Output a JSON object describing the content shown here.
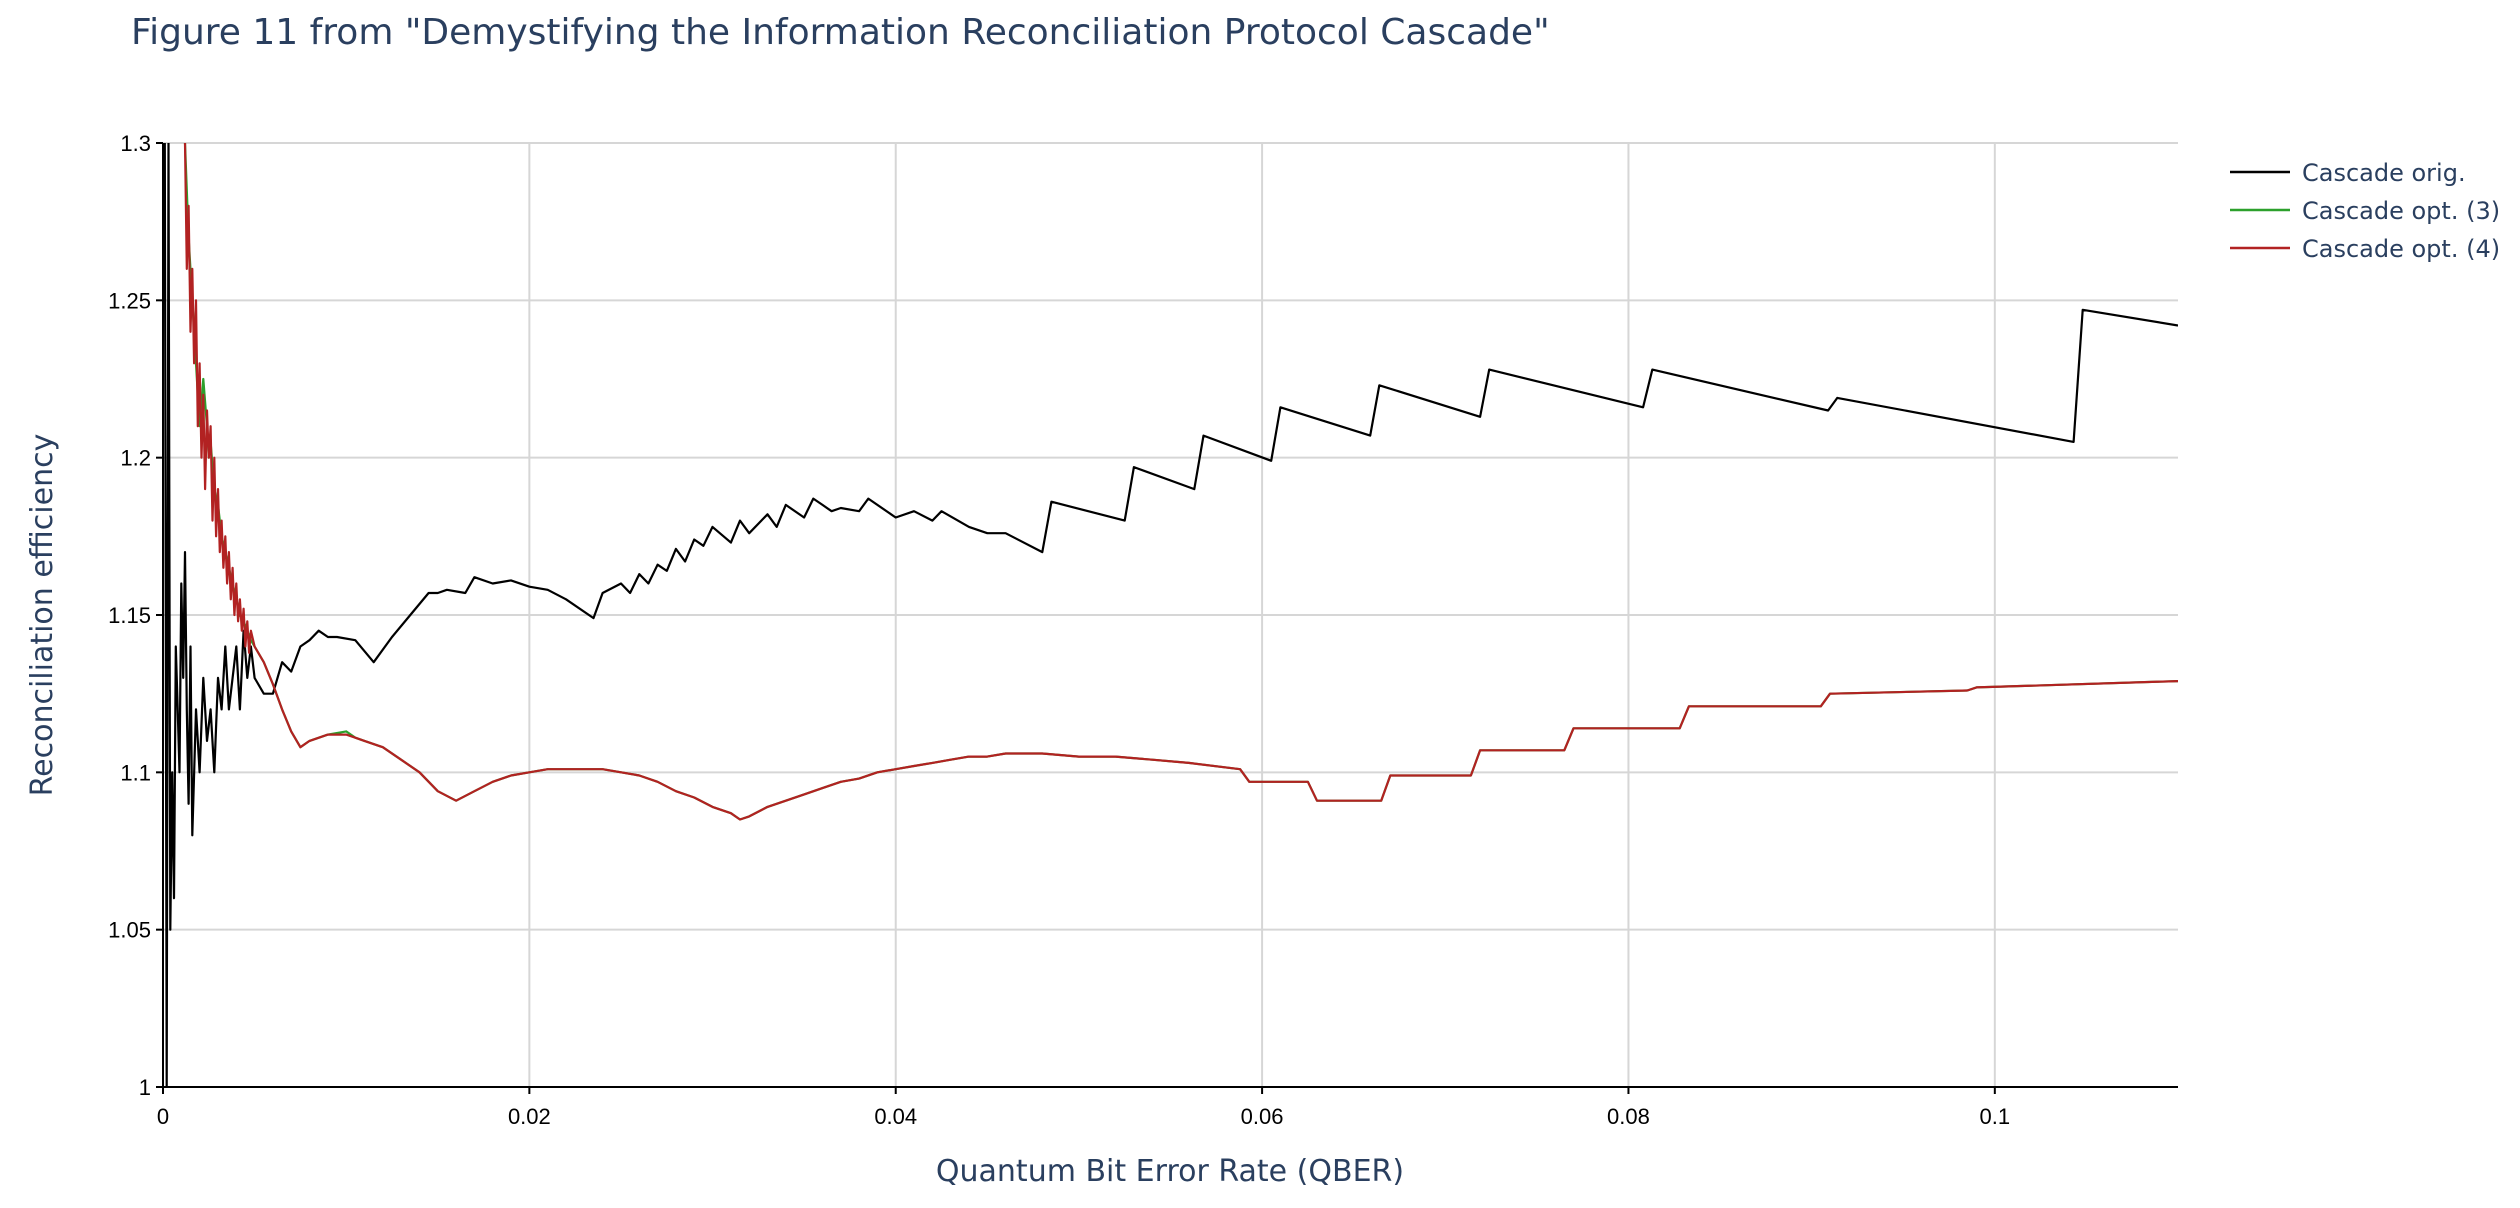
{
  "chart_data": {
    "type": "line",
    "title": "Figure 11 from \"Demystifying the Information Reconciliation Protocol Cascade\"",
    "xlabel": "Quantum Bit Error Rate (QBER)",
    "ylabel": "Reconciliation efficiency",
    "xlim": [
      0,
      0.11
    ],
    "ylim": [
      1,
      1.3
    ],
    "xticks": [
      0,
      0.02,
      0.04,
      0.06,
      0.08,
      0.1
    ],
    "xtick_labels": [
      "0",
      "0.02",
      "0.04",
      "0.06",
      "0.08",
      "0.1"
    ],
    "yticks": [
      1,
      1.05,
      1.1,
      1.15,
      1.2,
      1.25,
      1.3
    ],
    "ytick_labels": [
      "1",
      "1.05",
      "1.1",
      "1.15",
      "1.2",
      "1.25",
      "1.3"
    ],
    "grid": true,
    "legend_position": "top-right",
    "series": [
      {
        "name": "Cascade orig.",
        "color": "#000000",
        "x": [
          0.0001,
          0.0002,
          0.0003,
          0.0004,
          0.0005,
          0.0006,
          0.0007,
          0.0008,
          0.0009,
          0.001,
          0.0011,
          0.0012,
          0.0013,
          0.0014,
          0.0015,
          0.0016,
          0.0018,
          0.002,
          0.0022,
          0.0024,
          0.0026,
          0.0028,
          0.003,
          0.0032,
          0.0034,
          0.0036,
          0.0038,
          0.004,
          0.0042,
          0.0044,
          0.0046,
          0.0048,
          0.005,
          0.0055,
          0.006,
          0.0065,
          0.007,
          0.0075,
          0.008,
          0.0085,
          0.009,
          0.0095,
          0.0105,
          0.0115,
          0.0125,
          0.0135,
          0.0145,
          0.015,
          0.0155,
          0.0165,
          0.017,
          0.018,
          0.019,
          0.02,
          0.021,
          0.022,
          0.0235,
          0.024,
          0.025,
          0.0255,
          0.026,
          0.0265,
          0.027,
          0.0275,
          0.028,
          0.0285,
          0.029,
          0.0295,
          0.03,
          0.031,
          0.0315,
          0.032,
          0.033,
          0.0335,
          0.034,
          0.035,
          0.0355,
          0.036,
          0.0365,
          0.037,
          0.038,
          0.0385,
          0.04,
          0.041,
          0.042,
          0.0425,
          0.044,
          0.045,
          0.046,
          0.048,
          0.0485,
          0.0525,
          0.053,
          0.0563,
          0.0568,
          0.0605,
          0.061,
          0.0659,
          0.0664,
          0.0719,
          0.0724,
          0.0808,
          0.0813,
          0.0909,
          0.0914,
          0.1043,
          0.1048,
          0.11
        ],
        "y": [
          1.3,
          1.0,
          1.3,
          1.05,
          1.1,
          1.06,
          1.14,
          1.12,
          1.1,
          1.16,
          1.13,
          1.17,
          1.12,
          1.09,
          1.14,
          1.08,
          1.12,
          1.1,
          1.13,
          1.11,
          1.12,
          1.1,
          1.13,
          1.12,
          1.14,
          1.12,
          1.13,
          1.14,
          1.12,
          1.145,
          1.13,
          1.14,
          1.13,
          1.125,
          1.125,
          1.135,
          1.132,
          1.14,
          1.142,
          1.145,
          1.143,
          1.143,
          1.142,
          1.135,
          1.143,
          1.15,
          1.157,
          1.157,
          1.158,
          1.157,
          1.162,
          1.16,
          1.161,
          1.159,
          1.158,
          1.155,
          1.149,
          1.157,
          1.16,
          1.157,
          1.163,
          1.16,
          1.166,
          1.164,
          1.171,
          1.167,
          1.174,
          1.172,
          1.178,
          1.173,
          1.18,
          1.176,
          1.182,
          1.178,
          1.185,
          1.181,
          1.187,
          1.185,
          1.183,
          1.184,
          1.183,
          1.187,
          1.181,
          1.183,
          1.18,
          1.183,
          1.178,
          1.176,
          1.176,
          1.17,
          1.186,
          1.18,
          1.197,
          1.19,
          1.207,
          1.199,
          1.216,
          1.207,
          1.223,
          1.213,
          1.228,
          1.216,
          1.228,
          1.215,
          1.219,
          1.205,
          1.247,
          1.242
        ]
      },
      {
        "name": "Cascade opt. (3)",
        "color": "#2ca02c",
        "x": [
          0.0012,
          0.0014,
          0.0016,
          0.0018,
          0.002,
          0.0022,
          0.0024,
          0.0025,
          0.0026,
          0.0028,
          0.003,
          0.0032,
          0.0034,
          0.0036,
          0.0038,
          0.004,
          0.0042,
          0.0044,
          0.0046,
          0.0048,
          0.005,
          0.0055,
          0.006,
          0.0065,
          0.007,
          0.0075,
          0.008,
          0.009,
          0.01,
          0.0105,
          0.011,
          0.012,
          0.013,
          0.014,
          0.015,
          0.016,
          0.017,
          0.018,
          0.019,
          0.02,
          0.021,
          0.022,
          0.023,
          0.024,
          0.025,
          0.026,
          0.027,
          0.028,
          0.029,
          0.03,
          0.031,
          0.0315,
          0.032,
          0.033,
          0.034,
          0.035,
          0.036,
          0.037,
          0.038,
          0.039,
          0.04,
          0.041,
          0.042,
          0.043,
          0.044,
          0.045,
          0.046,
          0.047,
          0.048,
          0.05,
          0.052,
          0.054,
          0.056,
          0.0588,
          0.0593,
          0.0625,
          0.063,
          0.0665,
          0.067,
          0.0714,
          0.0719,
          0.0765,
          0.077,
          0.0828,
          0.0833,
          0.0905,
          0.091,
          0.0985,
          0.099,
          0.11
        ],
        "y": [
          1.3,
          1.27,
          1.25,
          1.23,
          1.21,
          1.225,
          1.21,
          1.2,
          1.205,
          1.19,
          1.185,
          1.175,
          1.17,
          1.165,
          1.16,
          1.155,
          1.15,
          1.148,
          1.145,
          1.142,
          1.14,
          1.135,
          1.128,
          1.12,
          1.113,
          1.108,
          1.11,
          1.112,
          1.113,
          1.111,
          1.11,
          1.108,
          1.104,
          1.1,
          1.094,
          1.091,
          1.094,
          1.097,
          1.099,
          1.1,
          1.101,
          1.101,
          1.101,
          1.101,
          1.1,
          1.099,
          1.097,
          1.094,
          1.092,
          1.089,
          1.087,
          1.085,
          1.086,
          1.089,
          1.091,
          1.093,
          1.095,
          1.097,
          1.098,
          1.1,
          1.101,
          1.102,
          1.103,
          1.104,
          1.105,
          1.105,
          1.106,
          1.106,
          1.106,
          1.105,
          1.105,
          1.104,
          1.103,
          1.101,
          1.097,
          1.097,
          1.091,
          1.091,
          1.099,
          1.099,
          1.107,
          1.107,
          1.114,
          1.114,
          1.121,
          1.121,
          1.125,
          1.126,
          1.127,
          1.129
        ]
      },
      {
        "name": "Cascade opt. (4)",
        "color": "#b22222",
        "x": [
          0.0012,
          0.0013,
          0.0014,
          0.0015,
          0.0016,
          0.0017,
          0.0018,
          0.0019,
          0.002,
          0.0021,
          0.0022,
          0.0023,
          0.0024,
          0.0025,
          0.0026,
          0.0027,
          0.0028,
          0.0029,
          0.003,
          0.0031,
          0.0032,
          0.0033,
          0.0034,
          0.0035,
          0.0036,
          0.0037,
          0.0038,
          0.0039,
          0.004,
          0.0041,
          0.0042,
          0.0043,
          0.0044,
          0.0045,
          0.0046,
          0.0047,
          0.0048,
          0.005,
          0.0055,
          0.006,
          0.0065,
          0.007,
          0.0075,
          0.008,
          0.009,
          0.01,
          0.0105,
          0.011,
          0.012,
          0.013,
          0.014,
          0.015,
          0.016,
          0.017,
          0.018,
          0.019,
          0.02,
          0.021,
          0.022,
          0.023,
          0.024,
          0.025,
          0.026,
          0.027,
          0.028,
          0.029,
          0.03,
          0.031,
          0.0315,
          0.032,
          0.033,
          0.034,
          0.035,
          0.036,
          0.037,
          0.038,
          0.039,
          0.04,
          0.041,
          0.042,
          0.043,
          0.044,
          0.045,
          0.046,
          0.047,
          0.048,
          0.05,
          0.052,
          0.054,
          0.056,
          0.0588,
          0.0593,
          0.0625,
          0.063,
          0.0665,
          0.067,
          0.0714,
          0.0719,
          0.0765,
          0.077,
          0.0828,
          0.0833,
          0.0905,
          0.091,
          0.0985,
          0.099,
          0.11
        ],
        "y": [
          1.3,
          1.26,
          1.28,
          1.24,
          1.26,
          1.23,
          1.25,
          1.21,
          1.23,
          1.2,
          1.22,
          1.19,
          1.215,
          1.2,
          1.21,
          1.18,
          1.2,
          1.175,
          1.19,
          1.17,
          1.18,
          1.165,
          1.175,
          1.16,
          1.17,
          1.155,
          1.165,
          1.15,
          1.16,
          1.148,
          1.155,
          1.145,
          1.152,
          1.14,
          1.148,
          1.138,
          1.145,
          1.14,
          1.135,
          1.128,
          1.12,
          1.113,
          1.108,
          1.11,
          1.112,
          1.112,
          1.111,
          1.11,
          1.108,
          1.104,
          1.1,
          1.094,
          1.091,
          1.094,
          1.097,
          1.099,
          1.1,
          1.101,
          1.101,
          1.101,
          1.101,
          1.1,
          1.099,
          1.097,
          1.094,
          1.092,
          1.089,
          1.087,
          1.085,
          1.086,
          1.089,
          1.091,
          1.093,
          1.095,
          1.097,
          1.098,
          1.1,
          1.101,
          1.102,
          1.103,
          1.104,
          1.105,
          1.105,
          1.106,
          1.106,
          1.106,
          1.105,
          1.105,
          1.104,
          1.103,
          1.101,
          1.097,
          1.097,
          1.091,
          1.091,
          1.099,
          1.099,
          1.107,
          1.107,
          1.114,
          1.114,
          1.121,
          1.121,
          1.125,
          1.126,
          1.127,
          1.129
        ]
      }
    ]
  }
}
